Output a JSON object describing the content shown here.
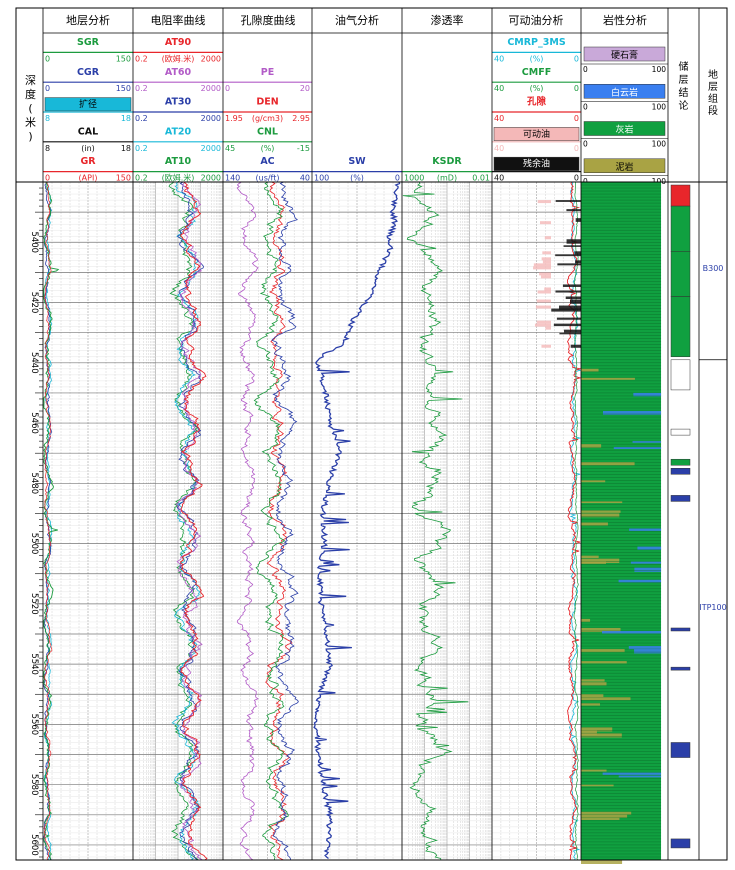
{
  "colors": {
    "red": "#e8262b",
    "green": "#1c9b3f",
    "blue": "#2b3fa8",
    "cyan": "#18b8d8",
    "magenta": "#b25bc7",
    "black": "#111111",
    "gray": "#9a9a9a",
    "dolomite": "#3a7ff0",
    "limestone": "#10a040",
    "mudstone": "#a9a344",
    "gypsum": "#c9a9d9",
    "movable": "#f4b8b8",
    "residual": "#111111"
  },
  "tracks": {
    "depth": {
      "title": "深度(米)"
    },
    "strat": {
      "title": "地层分析"
    },
    "resist": {
      "title": "电阻率曲线"
    },
    "poros": {
      "title": "孔隙度曲线"
    },
    "oilgas": {
      "title": "油气分析"
    },
    "perm": {
      "title": "渗透率"
    },
    "movoil": {
      "title": "可动油分析"
    },
    "litho": {
      "title": "岩性分析"
    },
    "conclusion": {
      "title": "储层结论"
    },
    "formation": {
      "title": "地层组段"
    }
  },
  "headers": {
    "strat": [
      {
        "name": "SGR",
        "left": "0",
        "right": "150",
        "unit": "",
        "color": "green"
      },
      {
        "name": "CGR",
        "left": "0",
        "right": "150",
        "unit": "",
        "color": "blue"
      },
      {
        "name": "扩径",
        "left": "8",
        "right": "18",
        "unit": "",
        "color": "cyan",
        "box": true
      },
      {
        "name": "CAL",
        "left": "8",
        "right": "18",
        "unit": "(in)",
        "color": "black"
      },
      {
        "name": "GR",
        "left": "0",
        "right": "150",
        "unit": "(API)",
        "color": "red"
      }
    ],
    "resist": [
      {
        "name": "AT90",
        "left": "0.2",
        "right": "2000",
        "unit": "(欧姆.米)",
        "color": "red"
      },
      {
        "name": "AT60",
        "left": "0.2",
        "right": "2000",
        "unit": "",
        "color": "magenta"
      },
      {
        "name": "AT30",
        "left": "0.2",
        "right": "2000",
        "unit": "",
        "color": "blue"
      },
      {
        "name": "AT20",
        "left": "0.2",
        "right": "2000",
        "unit": "",
        "color": "cyan"
      },
      {
        "name": "AT10",
        "left": "0.2",
        "right": "2000",
        "unit": "(欧姆.米)",
        "color": "green"
      }
    ],
    "poros": [
      {
        "name": "PE",
        "left": "0",
        "right": "20",
        "unit": "",
        "color": "magenta"
      },
      {
        "name": "DEN",
        "left": "1.95",
        "right": "2.95",
        "unit": "(g/cm3)",
        "color": "red"
      },
      {
        "name": "CNL",
        "left": "45",
        "right": "-15",
        "unit": "(%)",
        "color": "green"
      },
      {
        "name": "AC",
        "left": "140",
        "right": "40",
        "unit": "(us/ft)",
        "color": "blue"
      }
    ],
    "oilgas": [
      {
        "name": "SW",
        "left": "100",
        "right": "0",
        "unit": "(%)",
        "color": "blue"
      }
    ],
    "perm": [
      {
        "name": "KSDR",
        "left": "1000",
        "right": "0.01",
        "unit": "(mD)",
        "color": "green"
      }
    ],
    "movoil": [
      {
        "name": "CMRP_3MS",
        "left": "40",
        "right": "0",
        "unit": "(%)",
        "color": "cyan"
      },
      {
        "name": "CMFF",
        "left": "40",
        "right": "0",
        "unit": "(%)",
        "color": "green"
      },
      {
        "name": "孔隙",
        "left": "40",
        "right": "0",
        "unit": "",
        "color": "red"
      },
      {
        "name": "可动油",
        "left": "40",
        "right": "0",
        "unit": "",
        "color": "movable",
        "box": true
      },
      {
        "name": "残余油",
        "left": "40",
        "right": "0",
        "unit": "",
        "color": "residual",
        "box": true
      }
    ],
    "litho": [
      {
        "name": "硬石膏",
        "left": "0",
        "right": "100",
        "color": "gypsum"
      },
      {
        "name": "白云岩",
        "left": "0",
        "right": "100",
        "color": "dolomite"
      },
      {
        "name": "灰岩",
        "left": "0",
        "right": "100",
        "color": "limestone"
      },
      {
        "name": "泥岩",
        "left": "0",
        "right": "100",
        "color": "mudstone"
      }
    ]
  },
  "chart_data": {
    "type": "line",
    "ylim": [
      5380,
      5605
    ],
    "depth_ticks": [
      "5400",
      "5420",
      "5440",
      "5460",
      "5480",
      "5500",
      "5520",
      "5540",
      "5560",
      "5580",
      "5600"
    ],
    "formations": [
      {
        "name": "B300",
        "top": 5380,
        "bottom": 5439
      },
      {
        "name": "ITP100",
        "top": 5439,
        "bottom": 5605
      }
    ],
    "reservoir_conclusion": [
      {
        "top": 5381,
        "bottom": 5388,
        "class": "red"
      },
      {
        "top": 5388,
        "bottom": 5403,
        "class": "green"
      },
      {
        "top": 5403,
        "bottom": 5418,
        "class": "green"
      },
      {
        "top": 5418,
        "bottom": 5438,
        "class": "green"
      },
      {
        "top": 5439,
        "bottom": 5449,
        "class": "open"
      },
      {
        "top": 5462,
        "bottom": 5464,
        "class": "open"
      },
      {
        "top": 5472,
        "bottom": 5474,
        "class": "green"
      },
      {
        "top": 5475,
        "bottom": 5477,
        "class": "blue"
      },
      {
        "top": 5484,
        "bottom": 5486,
        "class": "blue"
      },
      {
        "top": 5528,
        "bottom": 5529,
        "class": "blue"
      },
      {
        "top": 5541,
        "bottom": 5542,
        "class": "blue"
      },
      {
        "top": 5566,
        "bottom": 5571,
        "class": "blue"
      },
      {
        "top": 5598,
        "bottom": 5601,
        "class": "blue"
      }
    ],
    "sw_profile": [
      [
        5380,
        0.04
      ],
      [
        5384,
        0.06
      ],
      [
        5390,
        0.1
      ],
      [
        5394,
        0.08
      ],
      [
        5398,
        0.15
      ],
      [
        5402,
        0.12
      ],
      [
        5406,
        0.2
      ],
      [
        5410,
        0.25
      ],
      [
        5414,
        0.3
      ],
      [
        5418,
        0.35
      ],
      [
        5422,
        0.45
      ],
      [
        5426,
        0.55
      ],
      [
        5430,
        0.6
      ],
      [
        5434,
        0.65
      ],
      [
        5437,
        0.85
      ],
      [
        5440,
        0.95
      ],
      [
        5444,
        0.9
      ],
      [
        5450,
        0.85
      ],
      [
        5460,
        0.8
      ],
      [
        5470,
        0.7
      ],
      [
        5480,
        0.82
      ],
      [
        5490,
        0.88
      ],
      [
        5500,
        0.86
      ],
      [
        5510,
        0.92
      ],
      [
        5520,
        0.9
      ],
      [
        5530,
        0.85
      ],
      [
        5540,
        0.8
      ],
      [
        5550,
        0.92
      ],
      [
        5560,
        0.95
      ],
      [
        5570,
        0.93
      ],
      [
        5580,
        0.88
      ],
      [
        5590,
        0.8
      ],
      [
        5600,
        0.82
      ],
      [
        5605,
        0.84
      ]
    ]
  }
}
